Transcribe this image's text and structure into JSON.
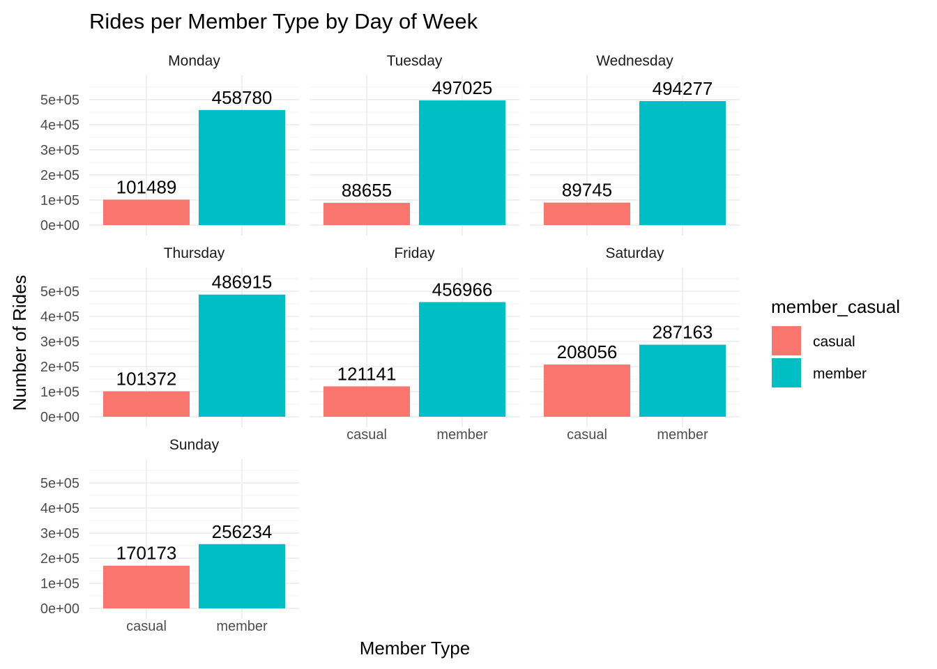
{
  "chart_data": {
    "type": "bar",
    "title": "Rides per Member Type by Day of Week",
    "xlabel": "Member Type",
    "ylabel": "Number of Rides",
    "legend_title": "member_casual",
    "legend_position": "right",
    "grid": true,
    "categories": [
      "casual",
      "member"
    ],
    "colors": {
      "casual": "#F8766D",
      "member": "#00BFC4"
    },
    "ylim": [
      0,
      560000
    ],
    "yticks": [
      0,
      100000,
      200000,
      300000,
      400000,
      500000
    ],
    "ytick_labels": [
      "0e+00",
      "1e+05",
      "2e+05",
      "3e+05",
      "4e+05",
      "5e+05"
    ],
    "facets": [
      {
        "name": "Monday",
        "values": [
          101489,
          458780
        ]
      },
      {
        "name": "Tuesday",
        "values": [
          88655,
          497025
        ]
      },
      {
        "name": "Wednesday",
        "values": [
          89745,
          494277
        ]
      },
      {
        "name": "Thursday",
        "values": [
          101372,
          486915
        ]
      },
      {
        "name": "Friday",
        "values": [
          121141,
          456966
        ]
      },
      {
        "name": "Saturday",
        "values": [
          208056,
          287163
        ]
      },
      {
        "name": "Sunday",
        "values": [
          170173,
          256234
        ]
      }
    ]
  }
}
